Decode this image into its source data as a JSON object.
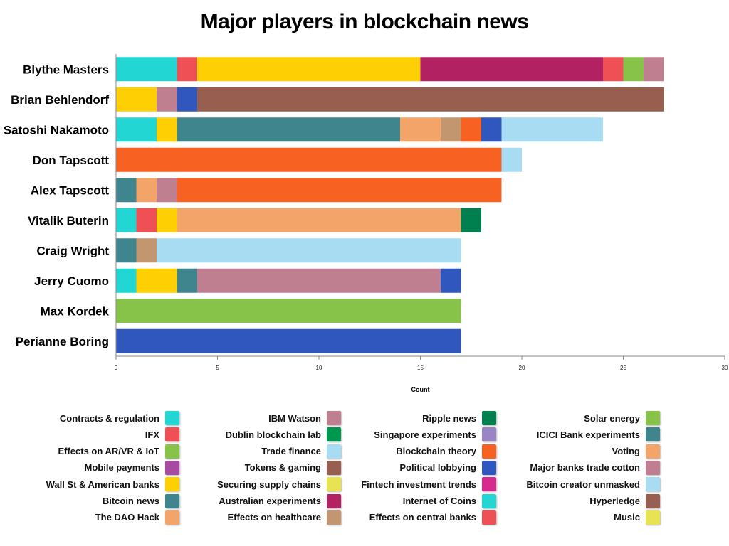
{
  "chart_data": {
    "type": "bar",
    "orientation": "horizontal",
    "stacked": true,
    "title": "Major players in blockchain news",
    "xlabel": "Count",
    "xlim": [
      0,
      30
    ],
    "xticks": [
      0,
      5,
      10,
      15,
      20,
      25,
      30
    ],
    "grid": false,
    "legend_placement": "bottom",
    "categories": [
      "Blythe Masters",
      "Brian Behlendorf",
      "Satoshi Nakamoto",
      "Don Tapscott",
      "Alex Tapscott",
      "Vitalik Buterin",
      "Craig Wright",
      "Jerry Cuomo",
      "Max Kordek",
      "Perianne Boring"
    ],
    "segments": [
      [
        {
          "value": 3,
          "color": "#22d6d3"
        },
        {
          "value": 1,
          "color": "#ef5055"
        },
        {
          "value": 11,
          "color": "#fecf02"
        },
        {
          "value": 9,
          "color": "#b22262"
        },
        {
          "value": 1,
          "color": "#ef5055"
        },
        {
          "value": 1,
          "color": "#86c348"
        },
        {
          "value": 1,
          "color": "#c07f90"
        }
      ],
      [
        {
          "value": 2,
          "color": "#fecf02"
        },
        {
          "value": 1,
          "color": "#c07f90"
        },
        {
          "value": 1,
          "color": "#2f57be"
        },
        {
          "value": 23,
          "color": "#985f51"
        }
      ],
      [
        {
          "value": 2,
          "color": "#22d6d3"
        },
        {
          "value": 1,
          "color": "#fecf02"
        },
        {
          "value": 11,
          "color": "#3f858d"
        },
        {
          "value": 2,
          "color": "#f3a468"
        },
        {
          "value": 1,
          "color": "#c2966e"
        },
        {
          "value": 1,
          "color": "#f76222"
        },
        {
          "value": 1,
          "color": "#2f57be"
        },
        {
          "value": 5,
          "color": "#a8dcf2"
        }
      ],
      [
        {
          "value": 19,
          "color": "#f76222"
        },
        {
          "value": 1,
          "color": "#a8dcf2"
        }
      ],
      [
        {
          "value": 1,
          "color": "#3f858d"
        },
        {
          "value": 1,
          "color": "#f3a468"
        },
        {
          "value": 1,
          "color": "#c07f90"
        },
        {
          "value": 16,
          "color": "#f76222"
        }
      ],
      [
        {
          "value": 1,
          "color": "#22d6d3"
        },
        {
          "value": 1,
          "color": "#ef5055"
        },
        {
          "value": 1,
          "color": "#fecf02"
        },
        {
          "value": 14,
          "color": "#f3a468"
        },
        {
          "value": 1,
          "color": "#00804f"
        }
      ],
      [
        {
          "value": 1,
          "color": "#3f858d"
        },
        {
          "value": 1,
          "color": "#c2966e"
        },
        {
          "value": 15,
          "color": "#a8dcf2"
        }
      ],
      [
        {
          "value": 1,
          "color": "#22d6d3"
        },
        {
          "value": 2,
          "color": "#fecf02"
        },
        {
          "value": 1,
          "color": "#3f858d"
        },
        {
          "value": 12,
          "color": "#c07f90"
        },
        {
          "value": 1,
          "color": "#2f57be"
        }
      ],
      [
        {
          "value": 17,
          "color": "#86c348"
        }
      ],
      [
        {
          "value": 17,
          "color": "#2f57be"
        }
      ]
    ],
    "legend": [
      [
        {
          "label": "Contracts & regulation",
          "color": "#22d6d3"
        },
        {
          "label": "IFX",
          "color": "#ef5055"
        },
        {
          "label": "Effects on AR/VR & IoT",
          "color": "#86c348"
        },
        {
          "label": "Mobile payments",
          "color": "#a64aa2"
        },
        {
          "label": "Wall St & American banks",
          "color": "#fecf02"
        },
        {
          "label": "Bitcoin news",
          "color": "#3f858d"
        },
        {
          "label": "The DAO Hack",
          "color": "#f3a468"
        }
      ],
      [
        {
          "label": "IBM Watson",
          "color": "#c07f90"
        },
        {
          "label": "Dublin blockchain lab",
          "color": "#00984f"
        },
        {
          "label": "Trade finance",
          "color": "#a8dcf2"
        },
        {
          "label": "Tokens & gaming",
          "color": "#985f51"
        },
        {
          "label": "Securing supply chains",
          "color": "#e8e351"
        },
        {
          "label": "Australian experiments",
          "color": "#b22262"
        },
        {
          "label": "Effects on healthcare",
          "color": "#c2966e"
        }
      ],
      [
        {
          "label": "Ripple news",
          "color": "#00804f"
        },
        {
          "label": "Singapore experiments",
          "color": "#9a84c4"
        },
        {
          "label": "Blockchain theory",
          "color": "#f76222"
        },
        {
          "label": "Political lobbying",
          "color": "#2f57be"
        },
        {
          "label": "Fintech investment trends",
          "color": "#d62a8e"
        },
        {
          "label": "Internet of Coins",
          "color": "#22d6d3"
        },
        {
          "label": "Effects on central banks",
          "color": "#ef5055"
        }
      ],
      [
        {
          "label": "Solar energy",
          "color": "#86c348"
        },
        {
          "label": "ICICI Bank experiments",
          "color": "#3f858d"
        },
        {
          "label": "Voting",
          "color": "#f3a468"
        },
        {
          "label": "Major banks trade cotton",
          "color": "#c07f90"
        },
        {
          "label": "Bitcoin creator unmasked",
          "color": "#a8dcf2"
        },
        {
          "label": "Hyperledge",
          "color": "#985f51"
        },
        {
          "label": "Music",
          "color": "#e8e351"
        }
      ]
    ]
  }
}
